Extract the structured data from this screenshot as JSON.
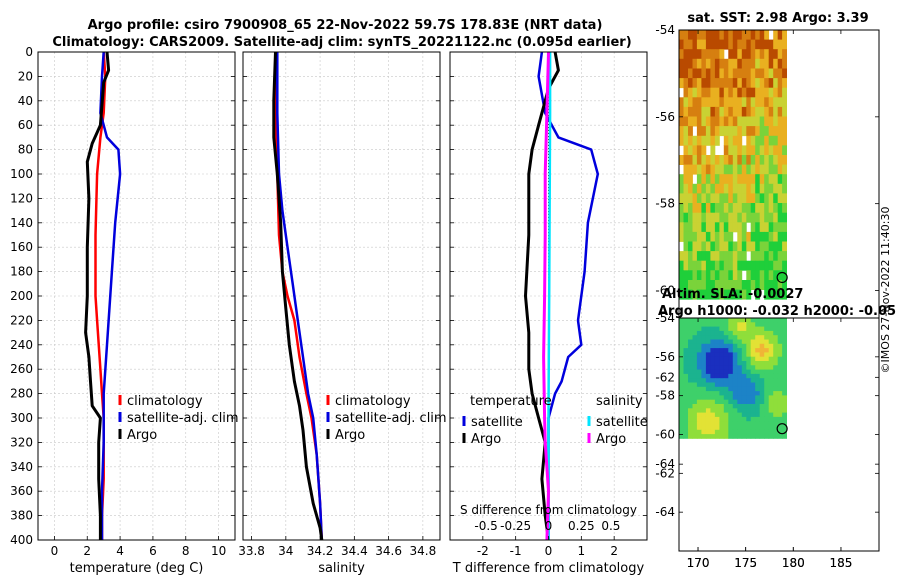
{
  "title_line1": "Argo profile: csiro 7900908_65 22-Nov-2022 59.7S 178.83E (NRT data)",
  "title_line2": "Climatology: CARS2009. Satellite-adj clim: synTS_20221122.nc (0.095d earlier)",
  "copyright": "©IMOS 27-Nov-2022 11:40:30",
  "colors": {
    "climatology": "#ff0000",
    "satellite": "#0000dd",
    "argo": "#000000",
    "cyan": "#00e5ff",
    "magenta": "#ff00ff"
  },
  "chart_data": [
    {
      "id": "temperature",
      "type": "line",
      "xlabel": "temperature (deg C)",
      "ylabel": "",
      "xlim": [
        -1,
        11
      ],
      "ylim": [
        400,
        0
      ],
      "xticks": [
        0,
        2,
        4,
        6,
        8,
        10
      ],
      "yticks": [
        0,
        20,
        40,
        60,
        80,
        100,
        120,
        140,
        160,
        180,
        200,
        220,
        240,
        260,
        280,
        300,
        320,
        340,
        360,
        380,
        400
      ],
      "grid": true,
      "legend": {
        "placement": "lower-right",
        "entries": [
          "climatology",
          "satellite-adj. clim",
          "Argo"
        ]
      },
      "series": [
        {
          "name": "climatology",
          "color": "#ff0000",
          "x": [
            3.0,
            3.1,
            3.0,
            2.8,
            2.6,
            2.5,
            2.5,
            2.6,
            2.8,
            2.9,
            3.0,
            3.0,
            3.0,
            2.9,
            2.9
          ],
          "y": [
            0,
            20,
            50,
            70,
            100,
            150,
            200,
            220,
            260,
            280,
            300,
            320,
            350,
            380,
            400
          ]
        },
        {
          "name": "satellite-adj. clim",
          "color": "#0000dd",
          "x": [
            3.0,
            2.9,
            2.8,
            3.2,
            3.9,
            4.0,
            3.7,
            3.5,
            3.2,
            3.0,
            3.0,
            3.0,
            2.9,
            2.9
          ],
          "y": [
            0,
            20,
            50,
            70,
            80,
            100,
            140,
            180,
            240,
            280,
            300,
            320,
            360,
            400
          ]
        },
        {
          "name": "Argo",
          "color": "#000000",
          "x": [
            3.2,
            3.3,
            3.0,
            2.8,
            2.3,
            2.0,
            2.1,
            2.0,
            2.0,
            1.9,
            2.1,
            2.2,
            2.3,
            2.8,
            2.7,
            2.7,
            2.8,
            2.8
          ],
          "y": [
            0,
            15,
            25,
            60,
            75,
            90,
            120,
            160,
            200,
            230,
            250,
            270,
            290,
            300,
            320,
            350,
            380,
            400
          ]
        }
      ]
    },
    {
      "id": "salinity",
      "type": "line",
      "xlabel": "salinity",
      "xlim": [
        33.75,
        34.9
      ],
      "ylim": [
        400,
        0
      ],
      "xticks": [
        33.8,
        34,
        34.2,
        34.4,
        34.6,
        34.8
      ],
      "xticklabels": [
        "33.8",
        "34",
        "34.2",
        "34.4",
        "34.6",
        "34.8"
      ],
      "grid": true,
      "legend": {
        "placement": "lower-right",
        "entries": [
          "climatology",
          "satellite-adj. clim",
          "Argo"
        ]
      },
      "series": [
        {
          "name": "climatology",
          "color": "#ff0000",
          "x": [
            33.94,
            33.94,
            33.95,
            33.96,
            33.98,
            34.01,
            34.05,
            34.08,
            34.12,
            34.15,
            34.18,
            34.2,
            34.21
          ],
          "y": [
            0,
            50,
            100,
            150,
            180,
            200,
            220,
            250,
            280,
            300,
            330,
            370,
            400
          ]
        },
        {
          "name": "satellite-adj. clim",
          "color": "#0000dd",
          "x": [
            33.95,
            33.95,
            33.96,
            33.98,
            34.01,
            34.04,
            34.07,
            34.1,
            34.13,
            34.16,
            34.18,
            34.2,
            34.21
          ],
          "y": [
            0,
            50,
            100,
            130,
            160,
            190,
            220,
            250,
            280,
            300,
            330,
            370,
            400
          ]
        },
        {
          "name": "Argo",
          "color": "#000000",
          "x": [
            33.94,
            33.93,
            33.93,
            33.95,
            33.97,
            33.98,
            34.0,
            34.02,
            34.05,
            34.08,
            34.1,
            34.12,
            34.16,
            34.2,
            34.21
          ],
          "y": [
            0,
            40,
            70,
            100,
            140,
            180,
            210,
            240,
            270,
            290,
            310,
            340,
            370,
            390,
            400
          ]
        }
      ]
    },
    {
      "id": "difference",
      "type": "line",
      "xlabel": "T difference from climatology",
      "top_axis_label": "S difference from climatology",
      "xlim": [
        -3,
        3
      ],
      "ylim": [
        400,
        0
      ],
      "xticks": [
        -2,
        -1,
        0,
        1,
        2
      ],
      "s_tick_labels": [
        "-0.5",
        "-0.25",
        "0",
        "0.25",
        "0.5"
      ],
      "grid": true,
      "legend": {
        "placement": "lower-center",
        "temperature_header": "temperature",
        "salinity_header": "salinity",
        "temperature_entries": [
          "satellite",
          "Argo"
        ],
        "salinity_entries": [
          "satellite",
          "Argo"
        ]
      },
      "series": [
        {
          "name": "temperature satellite",
          "color": "#0000dd",
          "x": [
            -0.2,
            -0.3,
            -0.1,
            0.3,
            1.3,
            1.5,
            1.2,
            1.1,
            0.9,
            1.0,
            0.6,
            0.4,
            0.2,
            0.0,
            0.0,
            0.0
          ],
          "y": [
            0,
            20,
            50,
            70,
            80,
            100,
            140,
            180,
            220,
            240,
            250,
            270,
            280,
            300,
            350,
            400
          ]
        },
        {
          "name": "temperature Argo",
          "color": "#000000",
          "x": [
            0.2,
            0.3,
            0.0,
            -0.3,
            -0.5,
            -0.6,
            -0.6,
            -0.7,
            -0.6,
            -0.6,
            -0.5,
            -0.3,
            -0.1,
            -0.2,
            -0.1,
            0.0
          ],
          "y": [
            0,
            15,
            30,
            60,
            80,
            100,
            150,
            200,
            230,
            260,
            280,
            300,
            320,
            350,
            380,
            400
          ]
        },
        {
          "name": "salinity satellite",
          "color": "#00e5ff",
          "x": [
            0.05,
            0.05,
            0.04,
            0.03,
            0.02,
            0.01,
            0.0,
            0.0,
            0.0
          ],
          "y": [
            0,
            50,
            100,
            150,
            200,
            250,
            300,
            350,
            400
          ]
        },
        {
          "name": "salinity Argo",
          "color": "#ff00ff",
          "x": [
            0.0,
            -0.05,
            -0.1,
            -0.1,
            -0.12,
            -0.15,
            -0.12,
            -0.1,
            0.0,
            -0.05
          ],
          "y": [
            0,
            50,
            100,
            150,
            200,
            250,
            300,
            320,
            360,
            400
          ]
        }
      ]
    },
    {
      "id": "sst_map",
      "type": "heatmap",
      "title": "sat. SST: 2.98 Argo: 3.39",
      "xlim": [
        168,
        189
      ],
      "ylim": [
        -66,
        -54
      ],
      "xticks": [
        170,
        175,
        180,
        185
      ],
      "yticks": [
        -54,
        -56,
        -58,
        -60,
        -62,
        -64
      ],
      "marker": {
        "lon": 178.83,
        "lat": -59.7
      },
      "colors": [
        "#b94a00",
        "#d67f10",
        "#e9b020",
        "#c9d233",
        "#7ad33a",
        "#1fcf3a"
      ]
    },
    {
      "id": "sla_map",
      "type": "heatmap",
      "title_line1": "Altim. SLA: -0.0027",
      "title_line2": "Argo h1000: -0.032 h2000: -0.05",
      "xlim": [
        168,
        189
      ],
      "ylim": [
        -66,
        -54
      ],
      "xticks": [
        170,
        175,
        180,
        185
      ],
      "yticks": [
        -54,
        -56,
        -58,
        -60,
        -62,
        -64
      ],
      "marker": {
        "lon": 178.83,
        "lat": -59.7
      },
      "colors": [
        "#1a2fbf",
        "#1c83c7",
        "#1bb38f",
        "#3ed06a",
        "#8fde3a",
        "#e2e235",
        "#f0b536"
      ]
    }
  ]
}
